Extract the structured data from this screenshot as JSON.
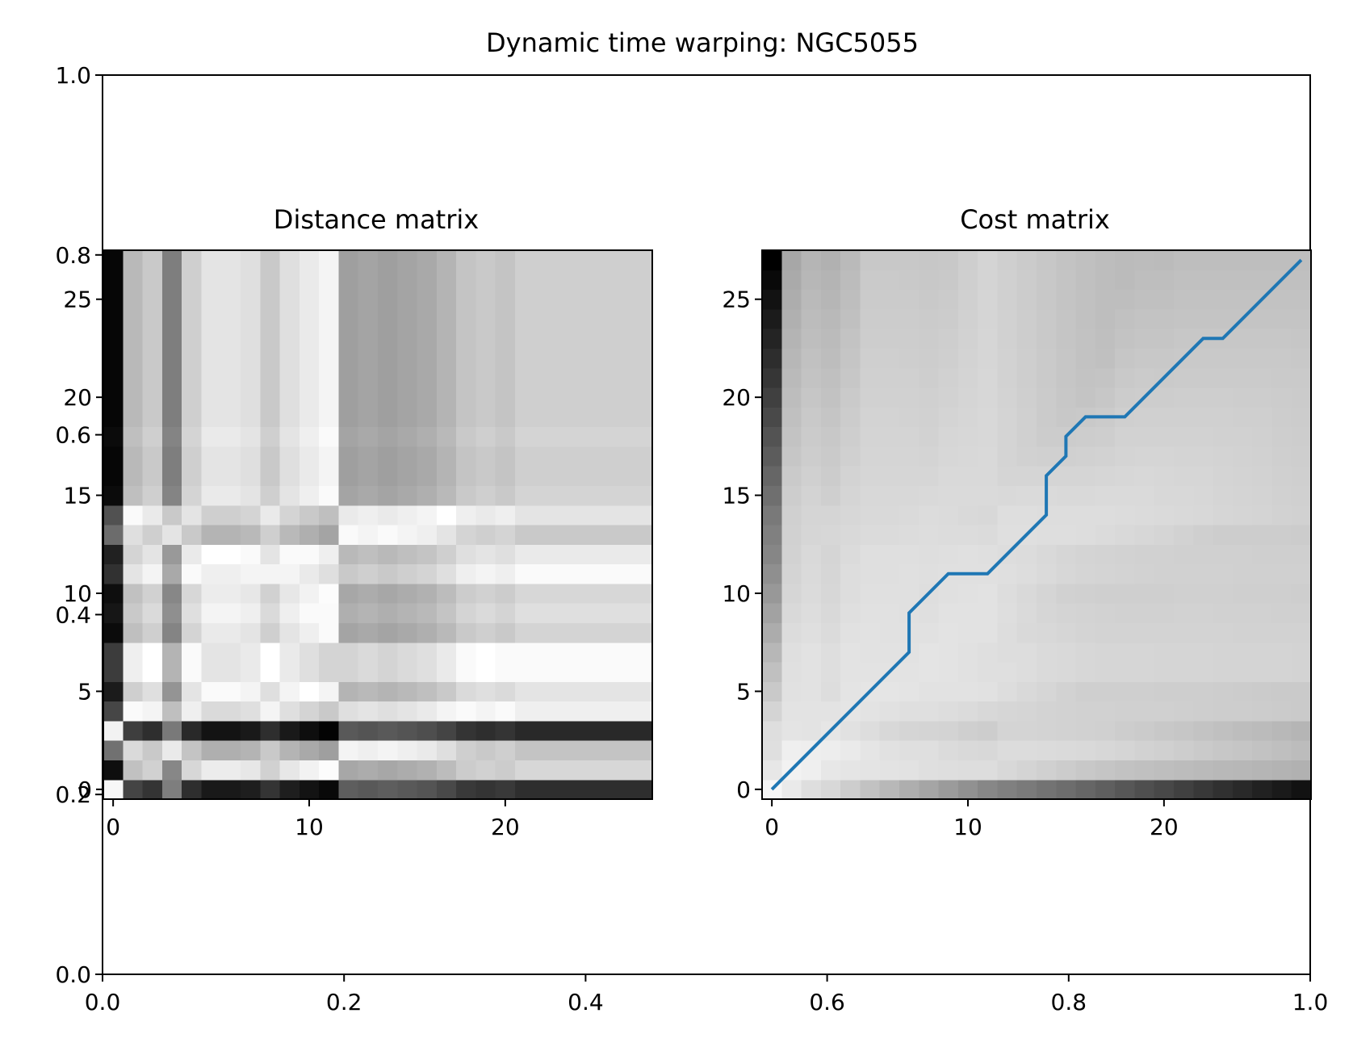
{
  "figure": {
    "title": "Dynamic time warping: NGC5055"
  },
  "chart_data": [
    {
      "type": "axes",
      "xlim": [
        0.0,
        1.0
      ],
      "ylim": [
        0.0,
        1.0
      ],
      "x_ticks": [
        "0.0",
        "0.2",
        "0.4",
        "0.6",
        "0.8",
        "1.0"
      ],
      "y_ticks": [
        "0.0",
        "0.2",
        "0.4",
        "0.6",
        "0.8",
        "1.0"
      ],
      "grid": false
    },
    {
      "type": "heatmap",
      "title": "Distance matrix",
      "colormap": "gray",
      "x_ticks": [
        "0",
        "10",
        "20"
      ],
      "y_ticks": [
        "0",
        "5",
        "10",
        "15",
        "20",
        "25"
      ],
      "xlim": [
        -0.5,
        27.5
      ],
      "ylim": [
        -0.5,
        27.5
      ],
      "x_profile": [
        0.05,
        0.72,
        0.78,
        0.5,
        0.8,
        0.88,
        0.88,
        0.86,
        0.78,
        0.86,
        0.9,
        0.94,
        0.62,
        0.64,
        0.62,
        0.64,
        0.66,
        0.7,
        0.76,
        0.78,
        0.76,
        0.8,
        0.8,
        0.8,
        0.8,
        0.8,
        0.8,
        0.8
      ],
      "y_profile": [
        0.02,
        0.95,
        0.58,
        0.0,
        0.74,
        0.9,
        0.78,
        0.78,
        0.96,
        0.92,
        0.95,
        0.82,
        0.88,
        0.6,
        0.7,
        0.96,
        0.98,
        0.98,
        0.96,
        0.98,
        0.98,
        0.98,
        0.98,
        0.98,
        0.98,
        0.98,
        0.98,
        0.98
      ]
    },
    {
      "type": "heatmap",
      "title": "Cost matrix",
      "colormap": "gray",
      "x_ticks": [
        "0",
        "10",
        "20"
      ],
      "y_ticks": [
        "0",
        "5",
        "10",
        "15",
        "20",
        "25"
      ],
      "xlim": [
        -0.5,
        27.5
      ],
      "ylim": [
        -0.5,
        27.5
      ],
      "warping_path": {
        "name": "",
        "color": "#1f77b4",
        "x": [
          0,
          7,
          7,
          9,
          11,
          14,
          14,
          15,
          15,
          16,
          18,
          22,
          23,
          27
        ],
        "y": [
          0,
          7,
          9,
          11,
          11,
          14,
          16,
          17,
          18,
          19,
          19,
          23,
          23,
          27
        ]
      }
    }
  ]
}
